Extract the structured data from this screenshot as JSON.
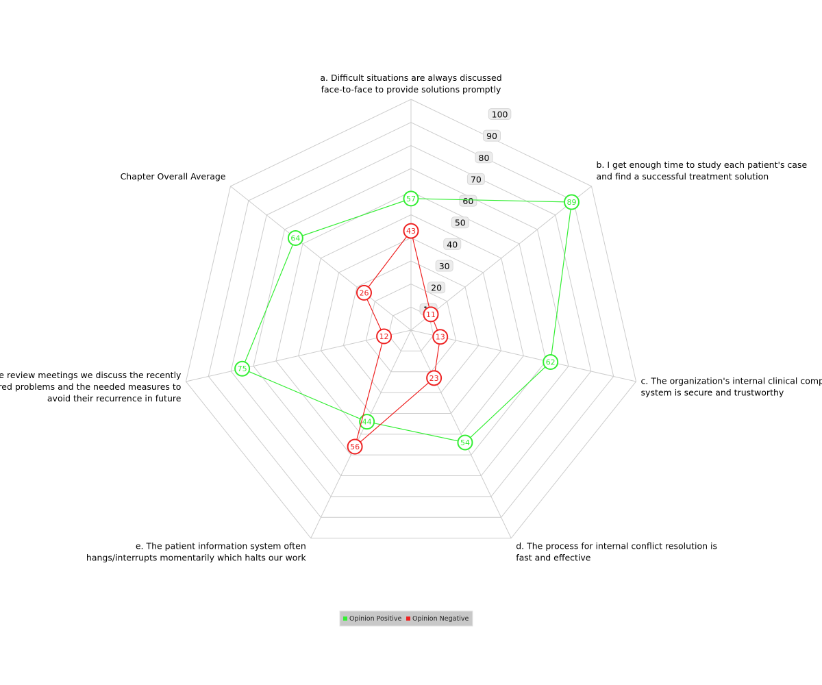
{
  "chart_data": {
    "type": "radar",
    "axes": [
      [
        "a. Difficult situations are always discussed",
        "face-to-face to provide solutions promptly"
      ],
      [
        "b. I get enough time to study each patient's case",
        "and find a successful treatment solution"
      ],
      [
        "c. The organization's internal clinical complaints",
        "system is secure and trustworthy"
      ],
      [
        "d. The process for internal conflict resolution is",
        "fast and effective"
      ],
      [
        "e. The patient information system often",
        "hangs/interrupts momentarily which halts our work"
      ],
      [
        "f. In the case review meetings we discuss the recently",
        "encountered problems and the needed measures to",
        "avoid their recurrence in future"
      ],
      [
        "Chapter Overall Average"
      ]
    ],
    "radial_ticks": [
      10,
      20,
      30,
      40,
      50,
      60,
      70,
      80,
      90,
      100
    ],
    "rlim": [
      0,
      100
    ],
    "grid": true,
    "legend_position": "bottom-center",
    "series": [
      {
        "name": "Opinion Positive",
        "color": "#33ee33",
        "values": [
          57,
          89,
          62,
          54,
          44,
          75,
          64
        ]
      },
      {
        "name": "Opinion Negative",
        "color": "#ee2222",
        "values": [
          43,
          11,
          13,
          23,
          56,
          12,
          26
        ]
      }
    ]
  }
}
